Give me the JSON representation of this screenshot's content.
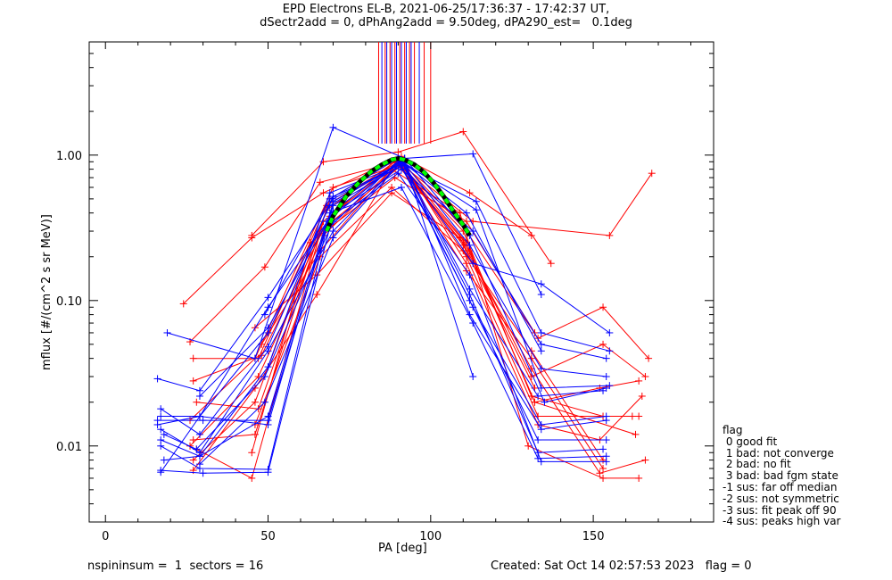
{
  "title": {
    "line1": "EPD Electrons EL-B, 2021-06-25/17:36:37 - 17:42:37 UT,",
    "line2": "dSectr2add = 0, dPhAng2add = 9.50deg, dPA290_est=   0.1deg"
  },
  "footer": {
    "left": "nspininsum =  1  sectors = 16",
    "right": "Created: Sat Oct 14 02:57:53 2023   flag = 0"
  },
  "legend": {
    "title": "flag",
    "items": [
      " 0 good fit",
      " 1 bad: not converge",
      " 2 bad: no fit",
      " 3 bad: bad fgm state",
      "-1 sus: far off median",
      "-2 sus: not symmetric",
      "-3 sus: fit peak off 90",
      "-4 sus: peaks high var"
    ]
  },
  "colors": {
    "red": "#ff0000",
    "blue": "#0000ff",
    "fit": "#00ff00",
    "fit_outline": "#000000"
  },
  "chart_data": {
    "type": "line",
    "xlabel": "PA [deg]",
    "ylabel": "mflux [#/(cm^2 s sr MeV)]",
    "xlim": [
      -5,
      187
    ],
    "ylim": [
      0.003,
      6.0
    ],
    "yscale": "log",
    "xticks": [
      0,
      50,
      100,
      150
    ],
    "yticks": [
      0.01,
      0.1,
      1.0
    ],
    "ytick_labels": [
      "0.01",
      "0.10",
      "1.00"
    ],
    "vertical_markers": {
      "y_range": [
        1.2,
        6.0
      ],
      "red_x": [
        84,
        86,
        87.5,
        89,
        90.5,
        92,
        93.5,
        95,
        98,
        100
      ],
      "blue_x": [
        85,
        86.5,
        88,
        89.5,
        91,
        92.5,
        94,
        96.5
      ]
    },
    "fit": {
      "x": [
        68,
        70,
        74,
        78,
        82,
        85,
        88,
        90,
        92,
        95,
        98,
        101,
        104,
        107,
        110,
        112
      ],
      "y": [
        0.3,
        0.38,
        0.52,
        0.65,
        0.78,
        0.86,
        0.93,
        0.95,
        0.93,
        0.86,
        0.76,
        0.64,
        0.52,
        0.41,
        0.33,
        0.28
      ]
    },
    "series": [
      {
        "color": "red",
        "points": [
          [
            45,
            0.28
          ],
          [
            67,
            0.9
          ],
          [
            90,
            1.05
          ],
          [
            110,
            1.45
          ],
          [
            137,
            0.18
          ]
        ]
      },
      {
        "color": "red",
        "points": [
          [
            24,
            0.095
          ],
          [
            45,
            0.27
          ],
          [
            67,
            0.55
          ],
          [
            91,
            0.98
          ],
          [
            112,
            0.55
          ],
          [
            131,
            0.28
          ]
        ]
      },
      {
        "color": "red",
        "points": [
          [
            26,
            0.052
          ],
          [
            49,
            0.17
          ],
          [
            66,
            0.65
          ],
          [
            90,
            0.9
          ],
          [
            113,
            0.35
          ],
          [
            155,
            0.28
          ],
          [
            168,
            0.75
          ]
        ]
      },
      {
        "color": "red",
        "points": [
          [
            27,
            0.028
          ],
          [
            48,
            0.042
          ],
          [
            69,
            0.38
          ],
          [
            90,
            0.95
          ],
          [
            111,
            0.3
          ],
          [
            133,
            0.055
          ],
          [
            153,
            0.09
          ],
          [
            167,
            0.04
          ]
        ]
      },
      {
        "color": "red",
        "points": [
          [
            26,
            0.015
          ],
          [
            46,
            0.04
          ],
          [
            70,
            0.6
          ],
          [
            90,
            0.85
          ],
          [
            110,
            0.26
          ],
          [
            131,
            0.03
          ],
          [
            153,
            0.05
          ],
          [
            166,
            0.03
          ]
        ]
      },
      {
        "color": "red",
        "points": [
          [
            27,
            0.008
          ],
          [
            46,
            0.02
          ],
          [
            68,
            0.42
          ],
          [
            89,
            0.9
          ],
          [
            112,
            0.22
          ],
          [
            132,
            0.02
          ],
          [
            152,
            0.025
          ],
          [
            164,
            0.028
          ]
        ]
      },
      {
        "color": "red",
        "points": [
          [
            28,
            0.0095
          ],
          [
            45,
            0.006
          ],
          [
            67,
            0.35
          ],
          [
            91,
            0.92
          ],
          [
            111,
            0.18
          ],
          [
            133,
            0.014
          ],
          [
            152,
            0.011
          ],
          [
            165,
            0.022
          ]
        ]
      },
      {
        "color": "red",
        "points": [
          [
            27,
            0.0068
          ],
          [
            46,
            0.025
          ],
          [
            65,
            0.11
          ],
          [
            88,
            0.8
          ],
          [
            109,
            0.4
          ],
          [
            130,
            0.01
          ],
          [
            153,
            0.006
          ],
          [
            164,
            0.006
          ]
        ]
      },
      {
        "color": "red",
        "points": [
          [
            27,
            0.011
          ],
          [
            46,
            0.012
          ],
          [
            69,
            0.5
          ],
          [
            90,
            0.95
          ],
          [
            111,
            0.2
          ],
          [
            133,
            0.016
          ],
          [
            164,
            0.016
          ]
        ]
      },
      {
        "color": "red",
        "points": [
          [
            27,
            0.04
          ],
          [
            47,
            0.04
          ],
          [
            68,
            0.45
          ],
          [
            90,
            0.9
          ],
          [
            111,
            0.25
          ],
          [
            132,
            0.02
          ],
          [
            163,
            0.012
          ]
        ]
      },
      {
        "color": "red",
        "points": [
          [
            28,
            0.02
          ],
          [
            47,
            0.018
          ],
          [
            66,
            0.3
          ],
          [
            91,
            0.85
          ],
          [
            110,
            0.3
          ],
          [
            131,
            0.022
          ],
          [
            153,
            0.016
          ],
          [
            162,
            0.016
          ]
        ]
      },
      {
        "color": "red",
        "points": [
          [
            46,
            0.065
          ],
          [
            65,
            0.15
          ],
          [
            88,
            0.55
          ],
          [
            109,
            0.27
          ],
          [
            131,
            0.034
          ],
          [
            152,
            0.0065
          ],
          [
            166,
            0.008
          ]
        ]
      },
      {
        "color": "red",
        "points": [
          [
            46,
            0.014
          ],
          [
            66,
            0.2
          ],
          [
            88,
            0.6
          ],
          [
            110,
            0.22
          ],
          [
            131,
            0.045
          ],
          [
            153,
            0.008
          ]
        ]
      },
      {
        "color": "red",
        "points": [
          [
            45,
            0.009
          ],
          [
            63,
            0.25
          ],
          [
            89,
            0.7
          ],
          [
            111,
            0.35
          ],
          [
            132,
            0.06
          ]
        ]
      },
      {
        "color": "red",
        "points": [
          [
            26,
            0.01
          ],
          [
            47,
            0.03
          ],
          [
            67,
            0.28
          ],
          [
            90,
            0.88
          ],
          [
            111,
            0.16
          ],
          [
            131,
            0.04
          ],
          [
            153,
            0.007
          ]
        ]
      },
      {
        "color": "red",
        "points": [
          [
            48,
            0.05
          ],
          [
            66,
            0.22
          ],
          [
            90,
            0.9
          ],
          [
            110,
            0.24
          ],
          [
            132,
            0.025
          ]
        ]
      },
      {
        "color": "blue",
        "points": [
          [
            19,
            0.06
          ],
          [
            46,
            0.04
          ],
          [
            70,
            1.55
          ],
          [
            92,
            0.95
          ],
          [
            113,
            1.02
          ],
          [
            134,
            0.11
          ]
        ]
      },
      {
        "color": "blue",
        "points": [
          [
            16,
            0.029
          ],
          [
            29,
            0.024
          ],
          [
            50,
            0.105
          ],
          [
            70,
            0.5
          ],
          [
            92,
            0.9
          ],
          [
            113,
            0.03
          ]
        ]
      },
      {
        "color": "blue",
        "points": [
          [
            17,
            0.016
          ],
          [
            29,
            0.016
          ],
          [
            50,
            0.06
          ],
          [
            69,
            0.45
          ],
          [
            91,
            0.9
          ],
          [
            113,
            0.18
          ],
          [
            134,
            0.13
          ],
          [
            155,
            0.06
          ]
        ]
      },
      {
        "color": "blue",
        "points": [
          [
            17,
            0.018
          ],
          [
            29,
            0.012
          ],
          [
            50,
            0.048
          ],
          [
            70,
            0.52
          ],
          [
            92,
            0.85
          ],
          [
            114,
            0.48
          ],
          [
            134,
            0.06
          ],
          [
            155,
            0.045
          ]
        ]
      },
      {
        "color": "blue",
        "points": [
          [
            16,
            0.014
          ],
          [
            29,
            0.016
          ],
          [
            50,
            0.09
          ],
          [
            70,
            0.4
          ],
          [
            91,
            0.8
          ],
          [
            113,
            0.3
          ],
          [
            134,
            0.05
          ],
          [
            154,
            0.04
          ]
        ]
      },
      {
        "color": "blue",
        "points": [
          [
            17,
            0.013
          ],
          [
            29,
            0.009
          ],
          [
            50,
            0.045
          ],
          [
            70,
            0.3
          ],
          [
            92,
            0.95
          ],
          [
            112,
            0.28
          ],
          [
            135,
            0.02
          ],
          [
            154,
            0.025
          ]
        ]
      },
      {
        "color": "blue",
        "points": [
          [
            17,
            0.011
          ],
          [
            29,
            0.0085
          ],
          [
            50,
            0.035
          ],
          [
            69,
            0.55
          ],
          [
            92,
            0.88
          ],
          [
            114,
            0.42
          ],
          [
            134,
            0.025
          ],
          [
            155,
            0.026
          ]
        ]
      },
      {
        "color": "blue",
        "points": [
          [
            18,
            0.008
          ],
          [
            29,
            0.0085
          ],
          [
            50,
            0.016
          ],
          [
            68,
            0.35
          ],
          [
            91,
            0.92
          ],
          [
            112,
            0.12
          ],
          [
            133,
            0.022
          ],
          [
            153,
            0.024
          ]
        ]
      },
      {
        "color": "blue",
        "points": [
          [
            17,
            0.0068
          ],
          [
            30,
            0.0065
          ],
          [
            50,
            0.0066
          ],
          [
            69,
            0.32
          ],
          [
            90,
            0.92
          ],
          [
            113,
            0.09
          ],
          [
            134,
            0.014
          ],
          [
            154,
            0.016
          ]
        ]
      },
      {
        "color": "blue",
        "points": [
          [
            17,
            0.01
          ],
          [
            29,
            0.007
          ],
          [
            50,
            0.0069
          ],
          [
            70,
            0.48
          ],
          [
            92,
            0.9
          ],
          [
            112,
            0.08
          ],
          [
            134,
            0.013
          ],
          [
            154,
            0.015
          ]
        ]
      },
      {
        "color": "blue",
        "points": [
          [
            16,
            0.015
          ],
          [
            30,
            0.015
          ],
          [
            50,
            0.015
          ],
          [
            70,
            0.45
          ],
          [
            91,
            0.85
          ],
          [
            112,
            0.1
          ],
          [
            133,
            0.011
          ],
          [
            154,
            0.011
          ]
        ]
      },
      {
        "color": "blue",
        "points": [
          [
            17,
            0.0066
          ],
          [
            29,
            0.016
          ],
          [
            50,
            0.014
          ],
          [
            69,
            0.4
          ],
          [
            91,
            0.6
          ],
          [
            113,
            0.07
          ],
          [
            133,
            0.0082
          ],
          [
            154,
            0.0085
          ]
        ]
      },
      {
        "color": "blue",
        "points": [
          [
            18,
            0.012
          ],
          [
            28,
            0.0095
          ],
          [
            49,
            0.03
          ],
          [
            70,
            0.35
          ],
          [
            90,
            0.75
          ],
          [
            112,
            0.15
          ],
          [
            134,
            0.0078
          ],
          [
            154,
            0.0078
          ]
        ]
      },
      {
        "color": "blue",
        "points": [
          [
            29,
            0.0075
          ],
          [
            49,
            0.02
          ],
          [
            70,
            0.27
          ],
          [
            91,
            0.9
          ],
          [
            112,
            0.11
          ],
          [
            133,
            0.009
          ],
          [
            153,
            0.0095
          ]
        ]
      },
      {
        "color": "blue",
        "points": [
          [
            29,
            0.022
          ],
          [
            50,
            0.065
          ],
          [
            70,
            0.41
          ],
          [
            91,
            0.93
          ],
          [
            112,
            0.24
          ],
          [
            134,
            0.034
          ],
          [
            154,
            0.03
          ]
        ]
      },
      {
        "color": "blue",
        "points": [
          [
            49,
            0.08
          ],
          [
            69,
            0.5
          ],
          [
            90,
            0.95
          ],
          [
            111,
            0.4
          ],
          [
            134,
            0.045
          ]
        ]
      }
    ]
  }
}
